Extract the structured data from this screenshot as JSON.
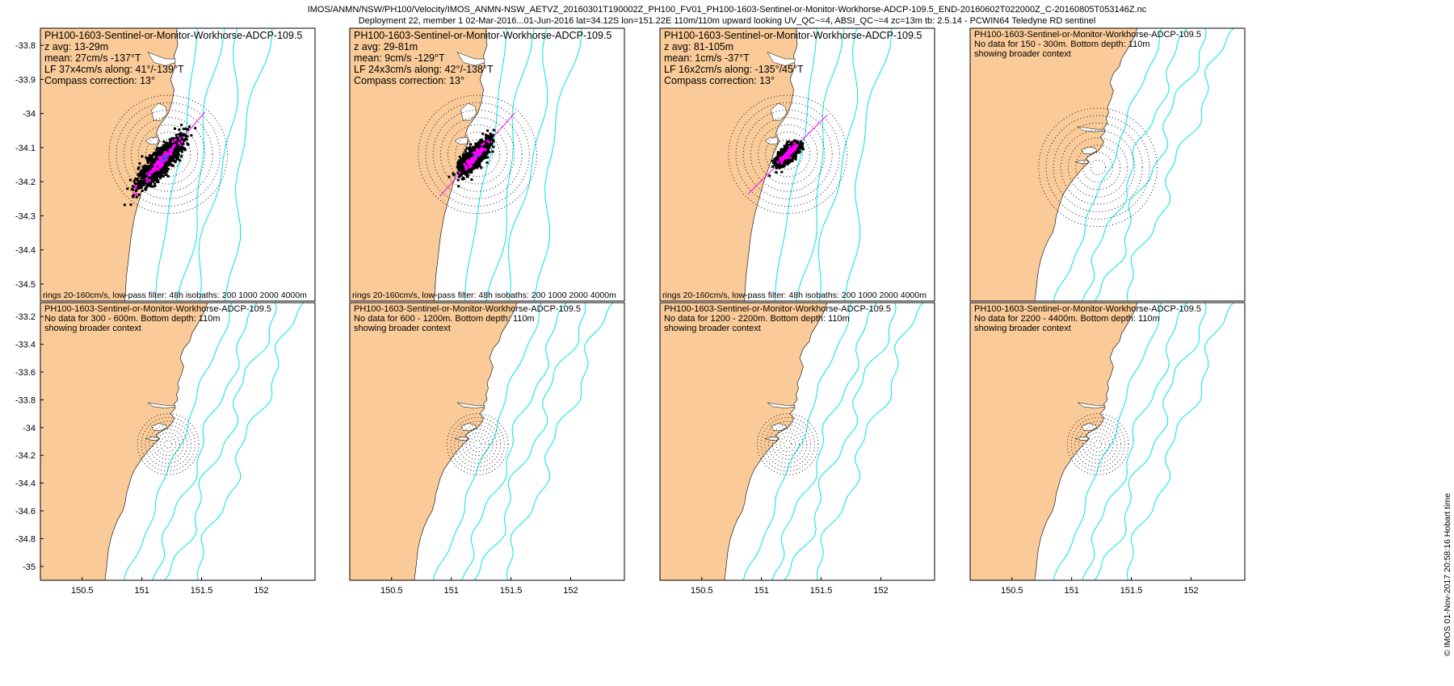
{
  "header": {
    "line1": "IMOS/ANMN/NSW/PH100/Velocity/IMOS_ANMN-NSW_AETVZ_20160301T190002Z_PH100_FV01_PH100-1603-Sentinel-or-Monitor-Workhorse-ADCP-109.5_END-20160602T022000Z_C-20160805T053146Z.nc",
    "line2": "Deployment 22, member 1 02-Mar-2016...01-Jun-2016 lat=34.12S lon=151.22E 110m/110m upward looking UV_QC~=4, ABSI_QC~=4 zc=13m tb: 2.5.14 - PCWIN64 Teledyne RD sentinel"
  },
  "footer_note": "© IMOS 01-Nov-2017 20:58:16 Hobart time",
  "colors": {
    "land": "#FACB98",
    "isobath": "#00E5E5",
    "scatter": "#000000",
    "lf": "#FF00FF",
    "mean": "#1F5FFF",
    "major_axis": "#FF00FF"
  },
  "chart_data": [
    {
      "type": "scatter",
      "panel": "top-1",
      "title": "PH100-1603-Sentinel-or-Monitor-Workhorse-ADCP-109.5",
      "info": [
        "z avg: 13-29m",
        "mean: 27cm/s -137°T",
        "LF 37x4cm/s along: 41°/-139°T",
        "Compass correction: 13°"
      ],
      "footer": "rings 20-160cm/s, low-pass filter: 48h isobaths: 200 1000 2000 4000m",
      "mean_speed_cms": 27,
      "mean_dir_degT": -137,
      "lf_major_cms": 37,
      "lf_minor_cms": 4,
      "along_dir_deg": 41,
      "compass_correction_deg": 13,
      "xlim": [
        150.15,
        152.45
      ],
      "ylim": [
        -34.55,
        -33.75
      ],
      "yticks": [
        -33.8,
        -33.9,
        -34,
        -34.1,
        -34.2,
        -34.3,
        -34.4,
        -34.5
      ],
      "ytick_labels": [
        "-33.8",
        "-33.9",
        "-34",
        "-34.1",
        "-34.2",
        "-34.3",
        "-34.4",
        "-34.5"
      ]
    },
    {
      "type": "scatter",
      "panel": "top-2",
      "title": "PH100-1603-Sentinel-or-Monitor-Workhorse-ADCP-109.5",
      "info": [
        "z avg: 29-81m",
        "mean: 9cm/s -129°T",
        "LF 24x3cm/s along: 42°/-138°T",
        "Compass correction: 13°"
      ],
      "footer": "rings 20-160cm/s, low-pass filter: 48h isobaths: 200 1000 2000 4000m",
      "mean_speed_cms": 9,
      "mean_dir_degT": -129,
      "lf_major_cms": 24,
      "lf_minor_cms": 3,
      "along_dir_deg": 42,
      "compass_correction_deg": 13,
      "xlim": [
        150.15,
        152.45
      ],
      "ylim": [
        -34.55,
        -33.75
      ]
    },
    {
      "type": "scatter",
      "panel": "top-3",
      "title": "PH100-1603-Sentinel-or-Monitor-Workhorse-ADCP-109.5",
      "info": [
        "z avg: 81-105m",
        "mean: 1cm/s -37°T",
        "LF 16x2cm/s along: -135°/45°T",
        "Compass correction: 13°"
      ],
      "footer": "rings 20-160cm/s, low-pass filter: 48h isobaths: 200 1000 2000 4000m",
      "mean_speed_cms": 1,
      "mean_dir_degT": -37,
      "lf_major_cms": 16,
      "lf_minor_cms": 2,
      "along_dir_deg": -135,
      "compass_correction_deg": 13,
      "xlim": [
        150.15,
        152.45
      ],
      "ylim": [
        -34.55,
        -33.75
      ]
    },
    {
      "type": "map",
      "panel": "top-4",
      "title": "PH100-1603-Sentinel-or-Monitor-Workhorse-ADCP-109.5",
      "info": [
        "No data for 150 - 300m. Bottom depth: 110m",
        "showing broader context"
      ],
      "xlim": [
        150.15,
        152.45
      ],
      "ylim": [
        -35.1,
        -33.1
      ]
    },
    {
      "type": "map",
      "panel": "bottom-1",
      "title": "PH100-1603-Sentinel-or-Monitor-Workhorse-ADCP-109.5",
      "info": [
        "No data for 300 - 600m. Bottom depth: 110m",
        "showing broader context"
      ],
      "xlim": [
        150.15,
        152.45
      ],
      "ylim": [
        -35.1,
        -33.1
      ],
      "yticks": [
        -33.2,
        -33.4,
        -33.6,
        -33.8,
        -34,
        -34.2,
        -34.4,
        -34.6,
        -34.8,
        -35
      ],
      "ytick_labels": [
        "-33.2",
        "-33.4",
        "-33.6",
        "-33.8",
        "-34",
        "-34.2",
        "-34.4",
        "-34.6",
        "-34.8",
        "-35"
      ]
    },
    {
      "type": "map",
      "panel": "bottom-2",
      "title": "PH100-1603-Sentinel-or-Monitor-Workhorse-ADCP-109.5",
      "info": [
        "No data for 600 - 1200m. Bottom depth: 110m",
        "showing broader context"
      ],
      "xlim": [
        150.15,
        152.45
      ],
      "ylim": [
        -35.1,
        -33.1
      ]
    },
    {
      "type": "map",
      "panel": "bottom-3",
      "title": "PH100-1603-Sentinel-or-Monitor-Workhorse-ADCP-109.5",
      "info": [
        "No data for 1200 - 2200m. Bottom depth: 110m",
        "showing broader context"
      ],
      "xlim": [
        150.15,
        152.45
      ],
      "ylim": [
        -35.1,
        -33.1
      ]
    },
    {
      "type": "map",
      "panel": "bottom-4",
      "title": "PH100-1603-Sentinel-or-Monitor-Workhorse-ADCP-109.5",
      "info": [
        "No data for 2200 - 4400m. Bottom depth: 110m",
        "showing broader context"
      ],
      "xlim": [
        150.15,
        152.45
      ],
      "ylim": [
        -35.1,
        -33.1
      ]
    }
  ],
  "xticks": [
    150.5,
    151,
    151.5,
    152
  ],
  "xtick_labels": [
    "150.5",
    "151",
    "151.5",
    "152"
  ],
  "rings_cms": [
    20,
    40,
    60,
    80,
    100,
    120,
    140,
    160
  ],
  "isobaths_m": [
    200,
    1000,
    2000,
    4000
  ],
  "mooring": {
    "lon": 151.22,
    "lat": -34.12
  }
}
